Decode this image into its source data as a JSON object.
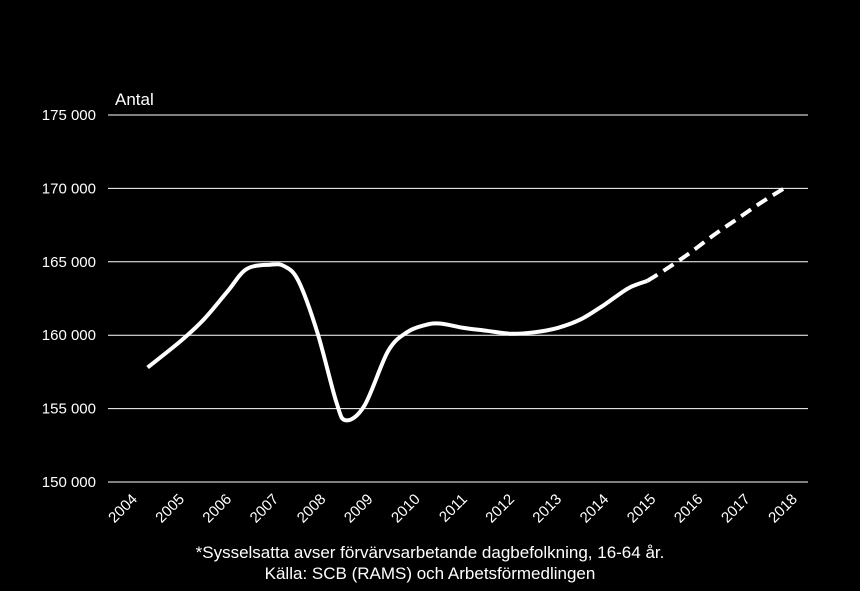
{
  "chart_data": {
    "type": "line",
    "ylabel": "Antal",
    "ylim": [
      150000,
      175000
    ],
    "yticks": [
      "150 000",
      "155 000",
      "160 000",
      "165 000",
      "170 000",
      "175 000"
    ],
    "ytick_values": [
      150000,
      155000,
      160000,
      165000,
      170000,
      175000
    ],
    "categories": [
      "2004",
      "2005",
      "2006",
      "2007",
      "2008",
      "2009",
      "2010",
      "2011",
      "2012",
      "2013",
      "2014",
      "2015",
      "2016",
      "2017",
      "2018"
    ],
    "grid": true,
    "series": [
      {
        "style": "solid",
        "color": "#ffffff",
        "x": [
          2004.5,
          2005.2,
          2005.7,
          2006.2,
          2006.6,
          2007.1,
          2007.4,
          2007.7,
          2008.1,
          2008.5,
          2008.7,
          2009.1,
          2009.6,
          2010.0,
          2010.4,
          2010.7,
          2011.2,
          2011.7,
          2012.2,
          2012.7,
          2013.2,
          2013.7,
          2014.2,
          2014.7,
          2015.1
        ],
        "values": [
          157800,
          159600,
          161100,
          163000,
          164500,
          164800,
          164700,
          163700,
          160200,
          155500,
          154200,
          155200,
          158900,
          160200,
          160700,
          160800,
          160500,
          160300,
          160100,
          160200,
          160500,
          161100,
          162100,
          163200,
          163700
        ]
      },
      {
        "style": "dashed",
        "color": "#ffffff",
        "x": [
          2015.1,
          2015.5,
          2016.0,
          2016.5,
          2017.0,
          2017.5,
          2018.0
        ],
        "values": [
          163700,
          164500,
          165600,
          166800,
          167900,
          169000,
          170000
        ]
      }
    ]
  },
  "footnotes": {
    "line1": "*Sysselsatta avser förvärvsarbetande dagbefolkning,  16-64 år.",
    "line2": "Källa: SCB (RAMS) och Arbetsförmedlingen"
  }
}
